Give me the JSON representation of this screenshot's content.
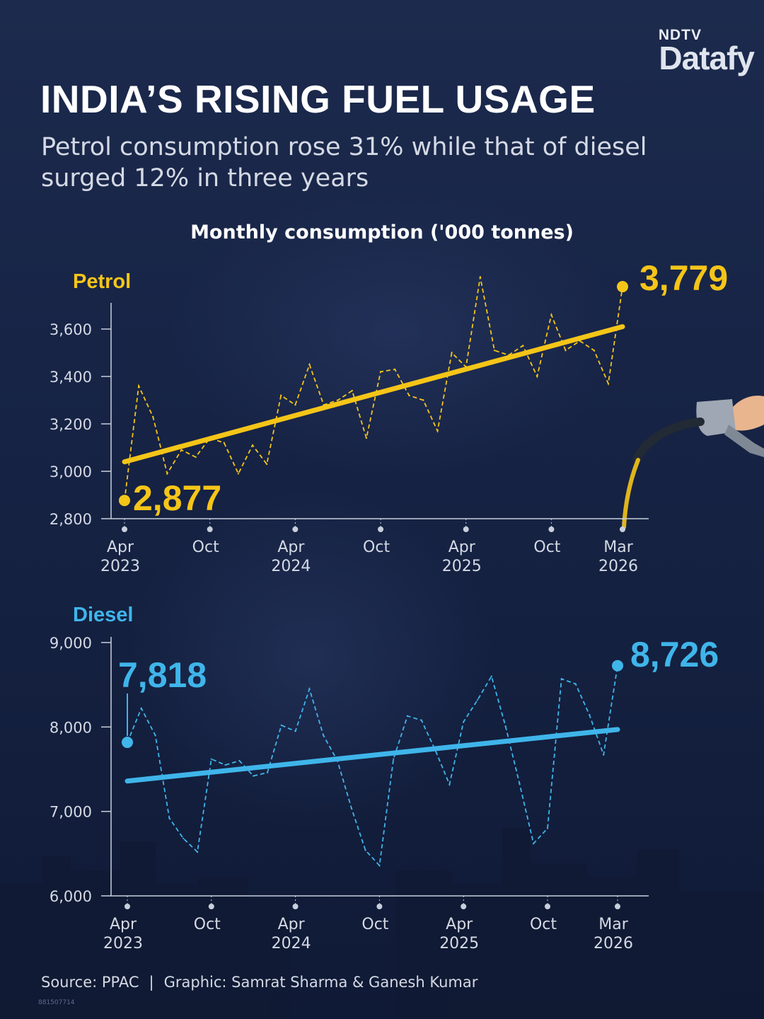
{
  "logo": {
    "top": "NDTV",
    "main": "Datafy"
  },
  "title": "INDIA’S RISING FUEL USAGE",
  "subtitle": "Petrol consumption rose 31% while that of diesel surged 12% in three years",
  "chart_heading": "Monthly consumption ('000 tonnes)",
  "footer": {
    "source": "Source: PPAC",
    "separator": "|",
    "credit": "Graphic: Samrat Sharma & Ganesh Kumar"
  },
  "image_id": "881507714",
  "colors": {
    "petrol": "#f5c518",
    "diesel": "#3fb5ea",
    "axis": "#c8cfdc",
    "background": "#172446"
  },
  "chart_data": [
    {
      "type": "line",
      "panel": "petrol",
      "label": "Petrol",
      "x_ticks": [
        {
          "index": 0,
          "label": [
            "Apr",
            "2023"
          ]
        },
        {
          "index": 6,
          "label": [
            "Oct",
            ""
          ]
        },
        {
          "index": 12,
          "label": [
            "Apr",
            "2024"
          ]
        },
        {
          "index": 18,
          "label": [
            "Oct",
            ""
          ]
        },
        {
          "index": 24,
          "label": [
            "Apr",
            "2025"
          ]
        },
        {
          "index": 30,
          "label": [
            "Oct",
            ""
          ]
        },
        {
          "index": 35,
          "label": [
            "Mar",
            "2026"
          ]
        }
      ],
      "y_ticks": [
        2800,
        3000,
        3200,
        3400,
        3600
      ],
      "y_tick_labels": [
        "2,800",
        "3,000",
        "3,200",
        "3,400",
        "3,600"
      ],
      "ylim": [
        2800,
        3800
      ],
      "values": [
        2877,
        3360,
        3230,
        2990,
        3090,
        3060,
        3140,
        3120,
        2990,
        3110,
        3030,
        3320,
        3280,
        3450,
        3280,
        3300,
        3340,
        3140,
        3420,
        3430,
        3320,
        3300,
        3170,
        3500,
        3440,
        3820,
        3510,
        3490,
        3530,
        3400,
        3660,
        3510,
        3550,
        3510,
        3370,
        3779
      ],
      "trend": [
        3040,
        3610
      ],
      "start_label": "2,877",
      "end_label": "3,779"
    },
    {
      "type": "line",
      "panel": "diesel",
      "label": "Diesel",
      "x_ticks": [
        {
          "index": 0,
          "label": [
            "Apr",
            "2023"
          ]
        },
        {
          "index": 6,
          "label": [
            "Oct",
            ""
          ]
        },
        {
          "index": 12,
          "label": [
            "Apr",
            "2024"
          ]
        },
        {
          "index": 18,
          "label": [
            "Oct",
            ""
          ]
        },
        {
          "index": 24,
          "label": [
            "Apr",
            "2025"
          ]
        },
        {
          "index": 30,
          "label": [
            "Oct",
            ""
          ]
        },
        {
          "index": 35,
          "label": [
            "Mar",
            "2026"
          ]
        }
      ],
      "y_ticks": [
        6000,
        7000,
        8000,
        9000
      ],
      "y_tick_labels": [
        "6,000",
        "7,000",
        "8,000",
        "9,000"
      ],
      "ylim": [
        6000,
        9000
      ],
      "values": [
        7818,
        8220,
        7900,
        6920,
        6680,
        6520,
        7620,
        7550,
        7600,
        7420,
        7460,
        8020,
        7950,
        8450,
        7900,
        7600,
        7040,
        6540,
        6360,
        7620,
        8130,
        8080,
        7720,
        7320,
        8060,
        8320,
        8600,
        8010,
        7330,
        6620,
        6800,
        8570,
        8510,
        8140,
        7670,
        8726
      ],
      "trend": [
        7360,
        7970
      ],
      "start_label": "7,818",
      "end_label": "8,726"
    }
  ]
}
